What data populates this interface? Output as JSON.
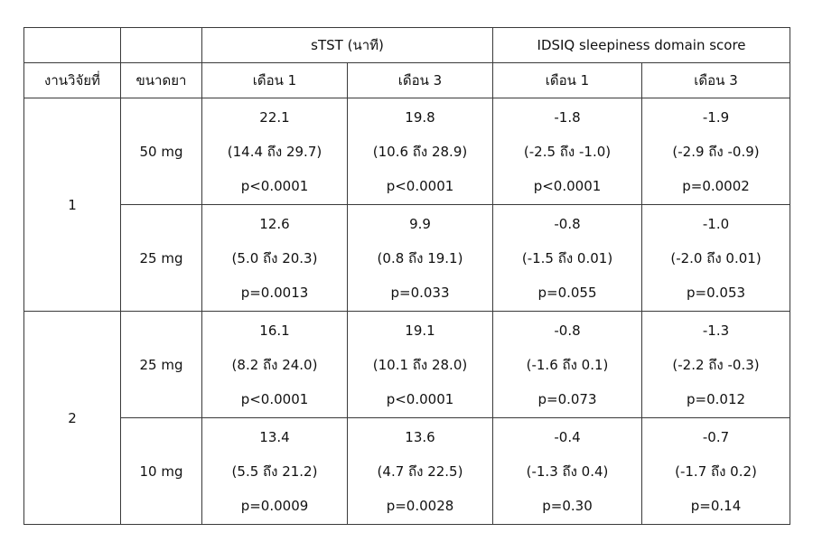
{
  "header": {
    "group_stst": "sTST (นาที)",
    "group_idsiq": "IDSIQ sleepiness domain score",
    "col_study": "งานวิจัยที่",
    "col_dose": "ขนาดยา",
    "col_stst_m1": "เดือน 1",
    "col_stst_m3": "เดือน 3",
    "col_idsiq_m1": "เดือน 1",
    "col_idsiq_m3": "เดือน 3"
  },
  "studies": [
    {
      "label": "1",
      "doses": [
        {
          "dose": "50 mg",
          "cells": [
            {
              "est": "22.1",
              "ci": "(14.4 ถึง 29.7)",
              "p": "p<0.0001"
            },
            {
              "est": "19.8",
              "ci": "(10.6 ถึง 28.9)",
              "p": "p<0.0001"
            },
            {
              "est": "-1.8",
              "ci": "(-2.5 ถึง -1.0)",
              "p": "p<0.0001"
            },
            {
              "est": "-1.9",
              "ci": "(-2.9 ถึง -0.9)",
              "p": "p=0.0002"
            }
          ]
        },
        {
          "dose": "25 mg",
          "cells": [
            {
              "est": "12.6",
              "ci": "(5.0 ถึง 20.3)",
              "p": "p=0.0013"
            },
            {
              "est": "9.9",
              "ci": "(0.8 ถึง 19.1)",
              "p": "p=0.033"
            },
            {
              "est": "-0.8",
              "ci": "(-1.5 ถึง 0.01)",
              "p": "p=0.055"
            },
            {
              "est": "-1.0",
              "ci": "(-2.0 ถึง 0.01)",
              "p": "p=0.053"
            }
          ]
        }
      ]
    },
    {
      "label": "2",
      "doses": [
        {
          "dose": "25 mg",
          "cells": [
            {
              "est": "16.1",
              "ci": "(8.2 ถึง 24.0)",
              "p": "p<0.0001"
            },
            {
              "est": "19.1",
              "ci": "(10.1 ถึง 28.0)",
              "p": "p<0.0001"
            },
            {
              "est": "-0.8",
              "ci": "(-1.6 ถึง 0.1)",
              "p": "p=0.073"
            },
            {
              "est": "-1.3",
              "ci": "(-2.2 ถึง -0.3)",
              "p": "p=0.012"
            }
          ]
        },
        {
          "dose": "10 mg",
          "cells": [
            {
              "est": "13.4",
              "ci": "(5.5 ถึง 21.2)",
              "p": "p=0.0009"
            },
            {
              "est": "13.6",
              "ci": "(4.7 ถึง 22.5)",
              "p": "p=0.0028"
            },
            {
              "est": "-0.4",
              "ci": "(-1.3 ถึง 0.4)",
              "p": "p=0.30"
            },
            {
              "est": "-0.7",
              "ci": "(-1.7 ถึง 0.2)",
              "p": "p=0.14"
            }
          ]
        }
      ]
    }
  ]
}
